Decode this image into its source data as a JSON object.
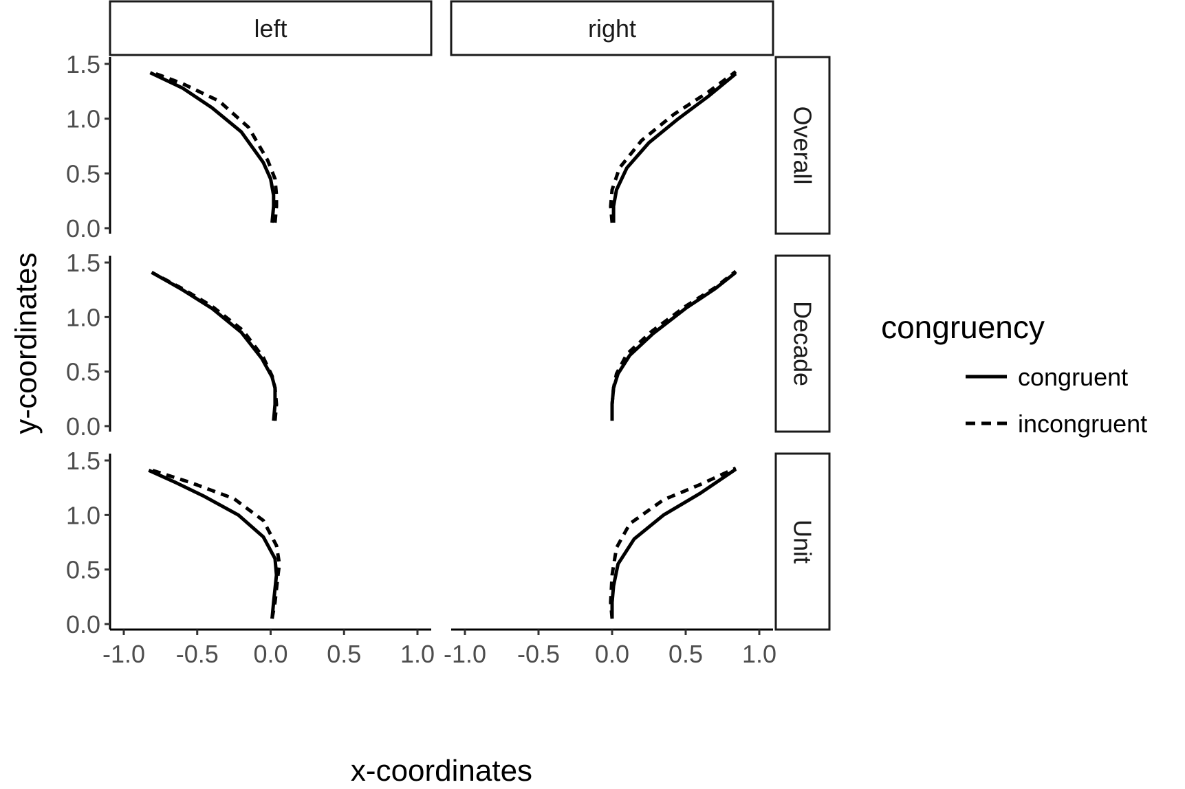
{
  "chart_data": {
    "type": "line",
    "xlabel": "x-coordinates",
    "ylabel": "y-coordinates",
    "xlim": [
      -1.0,
      1.0
    ],
    "ylim": [
      0.0,
      1.5
    ],
    "x_ticks": [
      -1.0,
      -0.5,
      0.0,
      0.5,
      1.0
    ],
    "y_ticks": [
      0.0,
      0.5,
      1.0,
      1.5
    ],
    "x_tick_labels": [
      "-1.0",
      "-0.5",
      "0.0",
      "0.5",
      "1.0"
    ],
    "y_tick_labels": [
      "0.0",
      "0.5",
      "1.0",
      "1.5"
    ],
    "facet_columns": [
      "left",
      "right"
    ],
    "facet_rows": [
      "Overall",
      "Decade",
      "Unit"
    ],
    "grid": false,
    "legend": {
      "title": "congruency",
      "position": "right",
      "entries": [
        {
          "label": "congruent",
          "linestyle": "solid"
        },
        {
          "label": "incongruent",
          "linestyle": "dashed"
        }
      ]
    },
    "panels": [
      {
        "row": "Overall",
        "col": "left",
        "series": [
          {
            "name": "congruent",
            "points": [
              [
                0.01,
                0.05
              ],
              [
                0.02,
                0.2
              ],
              [
                0.02,
                0.3
              ],
              [
                0.0,
                0.45
              ],
              [
                -0.05,
                0.6
              ],
              [
                -0.2,
                0.88
              ],
              [
                -0.4,
                1.1
              ],
              [
                -0.6,
                1.28
              ],
              [
                -0.82,
                1.42
              ]
            ]
          },
          {
            "name": "incongruent",
            "points": [
              [
                0.03,
                0.05
              ],
              [
                0.04,
                0.2
              ],
              [
                0.04,
                0.3
              ],
              [
                0.03,
                0.45
              ],
              [
                -0.02,
                0.62
              ],
              [
                -0.15,
                0.92
              ],
              [
                -0.35,
                1.16
              ],
              [
                -0.6,
                1.32
              ],
              [
                -0.82,
                1.43
              ]
            ]
          }
        ]
      },
      {
        "row": "Overall",
        "col": "right",
        "series": [
          {
            "name": "congruent",
            "points": [
              [
                0.01,
                0.05
              ],
              [
                0.01,
                0.2
              ],
              [
                0.03,
                0.35
              ],
              [
                0.1,
                0.55
              ],
              [
                0.25,
                0.78
              ],
              [
                0.45,
                1.0
              ],
              [
                0.65,
                1.2
              ],
              [
                0.84,
                1.41
              ]
            ]
          },
          {
            "name": "incongruent",
            "points": [
              [
                0.0,
                0.05
              ],
              [
                -0.01,
                0.2
              ],
              [
                0.0,
                0.35
              ],
              [
                0.05,
                0.55
              ],
              [
                0.2,
                0.8
              ],
              [
                0.42,
                1.04
              ],
              [
                0.65,
                1.24
              ],
              [
                0.84,
                1.43
              ]
            ]
          }
        ]
      },
      {
        "row": "Decade",
        "col": "left",
        "series": [
          {
            "name": "congruent",
            "points": [
              [
                0.02,
                0.05
              ],
              [
                0.03,
                0.2
              ],
              [
                0.03,
                0.35
              ],
              [
                0.01,
                0.45
              ],
              [
                -0.06,
                0.62
              ],
              [
                -0.2,
                0.86
              ],
              [
                -0.4,
                1.08
              ],
              [
                -0.6,
                1.25
              ],
              [
                -0.81,
                1.41
              ]
            ]
          },
          {
            "name": "incongruent",
            "points": [
              [
                0.03,
                0.05
              ],
              [
                0.04,
                0.2
              ],
              [
                0.03,
                0.35
              ],
              [
                0.01,
                0.46
              ],
              [
                -0.05,
                0.63
              ],
              [
                -0.19,
                0.88
              ],
              [
                -0.4,
                1.1
              ],
              [
                -0.6,
                1.26
              ],
              [
                -0.81,
                1.41
              ]
            ]
          }
        ]
      },
      {
        "row": "Decade",
        "col": "right",
        "series": [
          {
            "name": "congruent",
            "points": [
              [
                0.0,
                0.05
              ],
              [
                0.0,
                0.2
              ],
              [
                0.01,
                0.35
              ],
              [
                0.04,
                0.48
              ],
              [
                0.12,
                0.65
              ],
              [
                0.28,
                0.85
              ],
              [
                0.5,
                1.08
              ],
              [
                0.7,
                1.26
              ],
              [
                0.84,
                1.41
              ]
            ]
          },
          {
            "name": "incongruent",
            "points": [
              [
                0.0,
                0.05
              ],
              [
                0.0,
                0.2
              ],
              [
                0.01,
                0.35
              ],
              [
                0.03,
                0.48
              ],
              [
                0.1,
                0.66
              ],
              [
                0.27,
                0.87
              ],
              [
                0.5,
                1.1
              ],
              [
                0.7,
                1.27
              ],
              [
                0.84,
                1.42
              ]
            ]
          }
        ]
      },
      {
        "row": "Unit",
        "col": "left",
        "series": [
          {
            "name": "congruent",
            "points": [
              [
                0.01,
                0.05
              ],
              [
                0.02,
                0.2
              ],
              [
                0.04,
                0.45
              ],
              [
                0.03,
                0.6
              ],
              [
                -0.05,
                0.8
              ],
              [
                -0.22,
                1.0
              ],
              [
                -0.45,
                1.17
              ],
              [
                -0.65,
                1.3
              ],
              [
                -0.83,
                1.41
              ]
            ]
          },
          {
            "name": "incongruent",
            "points": [
              [
                0.01,
                0.05
              ],
              [
                0.03,
                0.2
              ],
              [
                0.05,
                0.45
              ],
              [
                0.06,
                0.55
              ],
              [
                0.04,
                0.72
              ],
              [
                -0.05,
                0.95
              ],
              [
                -0.25,
                1.15
              ],
              [
                -0.55,
                1.3
              ],
              [
                -0.83,
                1.42
              ]
            ]
          }
        ]
      },
      {
        "row": "Unit",
        "col": "right",
        "series": [
          {
            "name": "congruent",
            "points": [
              [
                0.0,
                0.05
              ],
              [
                0.0,
                0.2
              ],
              [
                0.01,
                0.35
              ],
              [
                0.04,
                0.55
              ],
              [
                0.15,
                0.78
              ],
              [
                0.35,
                1.0
              ],
              [
                0.6,
                1.2
              ],
              [
                0.84,
                1.42
              ]
            ]
          },
          {
            "name": "incongruent",
            "points": [
              [
                0.0,
                0.05
              ],
              [
                -0.01,
                0.2
              ],
              [
                0.0,
                0.45
              ],
              [
                0.03,
                0.7
              ],
              [
                0.12,
                0.92
              ],
              [
                0.35,
                1.14
              ],
              [
                0.6,
                1.28
              ],
              [
                0.84,
                1.43
              ]
            ]
          }
        ]
      }
    ]
  }
}
